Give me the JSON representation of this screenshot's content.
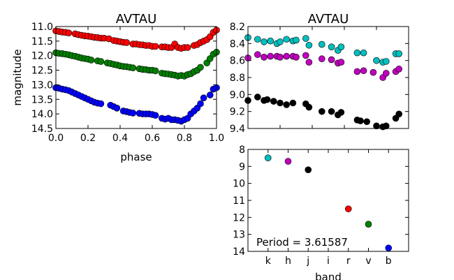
{
  "chart_data": [
    {
      "id": "lightcurve",
      "type": "scatter",
      "title": "AVTAU",
      "xlabel": "phase",
      "ylabel": "magnitude",
      "xlim": [
        0.0,
        1.0
      ],
      "ylim": [
        14.5,
        11.0
      ],
      "y_inverted": true,
      "xticks": [
        "0.0",
        "0.2",
        "0.4",
        "0.6",
        "0.8",
        "1.0"
      ],
      "yticks": [
        "11.0",
        "11.5",
        "12.0",
        "12.5",
        "13.0",
        "13.5",
        "14.0",
        "14.5"
      ],
      "series": [
        {
          "color": "#ff0000",
          "x": [
            0.0,
            0.02,
            0.04,
            0.06,
            0.08,
            0.12,
            0.14,
            0.16,
            0.18,
            0.2,
            0.22,
            0.24,
            0.26,
            0.28,
            0.3,
            0.33,
            0.36,
            0.38,
            0.4,
            0.42,
            0.44,
            0.48,
            0.5,
            0.52,
            0.54,
            0.56,
            0.58,
            0.6,
            0.62,
            0.66,
            0.68,
            0.7,
            0.72,
            0.74,
            0.76,
            0.78,
            0.8,
            0.82,
            0.86,
            0.88,
            0.9,
            0.92,
            0.94,
            0.96,
            0.98,
            1.0
          ],
          "y": [
            11.15,
            11.17,
            11.19,
            11.2,
            11.22,
            11.25,
            11.28,
            11.3,
            11.32,
            11.33,
            11.35,
            11.37,
            11.38,
            11.4,
            11.4,
            11.42,
            11.48,
            11.5,
            11.52,
            11.54,
            11.55,
            11.6,
            11.6,
            11.62,
            11.63,
            11.65,
            11.65,
            11.68,
            11.68,
            11.7,
            11.7,
            11.72,
            11.72,
            11.6,
            11.72,
            11.75,
            11.72,
            11.72,
            11.65,
            11.62,
            11.55,
            11.5,
            11.45,
            11.35,
            11.2,
            11.12
          ]
        },
        {
          "color": "#008000",
          "x": [
            0.0,
            0.02,
            0.04,
            0.06,
            0.08,
            0.1,
            0.12,
            0.14,
            0.16,
            0.18,
            0.2,
            0.22,
            0.26,
            0.28,
            0.32,
            0.34,
            0.36,
            0.38,
            0.4,
            0.42,
            0.44,
            0.46,
            0.48,
            0.52,
            0.54,
            0.56,
            0.58,
            0.6,
            0.62,
            0.66,
            0.68,
            0.7,
            0.72,
            0.74,
            0.76,
            0.78,
            0.8,
            0.82,
            0.84,
            0.86,
            0.88,
            0.9,
            0.94,
            0.96,
            0.98,
            1.0
          ],
          "y": [
            11.9,
            11.92,
            11.93,
            11.95,
            11.97,
            12.0,
            12.02,
            12.05,
            12.08,
            12.1,
            12.12,
            12.15,
            12.18,
            12.2,
            12.25,
            12.27,
            12.3,
            12.32,
            12.35,
            12.37,
            12.38,
            12.4,
            12.42,
            12.45,
            12.47,
            12.48,
            12.5,
            12.5,
            12.52,
            12.6,
            12.62,
            12.63,
            12.65,
            12.67,
            12.7,
            12.68,
            12.7,
            12.65,
            12.62,
            12.55,
            12.5,
            12.4,
            12.25,
            12.1,
            11.95,
            11.88
          ]
        },
        {
          "color": "#0000ff",
          "x": [
            0.0,
            0.02,
            0.04,
            0.06,
            0.08,
            0.1,
            0.12,
            0.14,
            0.16,
            0.18,
            0.2,
            0.22,
            0.24,
            0.26,
            0.28,
            0.34,
            0.36,
            0.38,
            0.42,
            0.44,
            0.46,
            0.48,
            0.52,
            0.54,
            0.56,
            0.58,
            0.6,
            0.62,
            0.66,
            0.68,
            0.7,
            0.72,
            0.74,
            0.76,
            0.78,
            0.8,
            0.82,
            0.84,
            0.86,
            0.88,
            0.9,
            0.92,
            0.96,
            0.98,
            1.0
          ],
          "y": [
            13.1,
            13.12,
            13.15,
            13.17,
            13.2,
            13.25,
            13.3,
            13.35,
            13.4,
            13.45,
            13.5,
            13.55,
            13.6,
            13.63,
            13.65,
            13.7,
            13.75,
            13.8,
            13.9,
            13.92,
            13.95,
            13.97,
            13.98,
            14.0,
            14.0,
            14.0,
            14.02,
            14.05,
            14.15,
            14.18,
            14.15,
            14.2,
            14.2,
            14.22,
            14.25,
            14.2,
            14.15,
            14.0,
            13.9,
            13.8,
            13.65,
            13.45,
            13.35,
            13.15,
            13.1
          ]
        }
      ]
    },
    {
      "id": "kband",
      "type": "scatter",
      "title": "AVTAU",
      "xlim": [
        0.0,
        1.0
      ],
      "ylim": [
        9.4,
        8.2
      ],
      "y_inverted": true,
      "yticks": [
        "8.2",
        "8.4",
        "8.6",
        "8.8",
        "9.0",
        "9.2",
        "9.4"
      ],
      "series": [
        {
          "color": "#00bfbf",
          "x": [
            0.0,
            0.06,
            0.1,
            0.14,
            0.18,
            0.2,
            0.24,
            0.28,
            0.3,
            0.36,
            0.38,
            0.46,
            0.52,
            0.56,
            0.58,
            0.68,
            0.72,
            0.8,
            0.84,
            0.86,
            0.92,
            0.94
          ],
          "y": [
            8.33,
            8.35,
            8.38,
            8.37,
            8.4,
            8.38,
            8.35,
            8.37,
            8.36,
            8.34,
            8.42,
            8.41,
            8.44,
            8.48,
            8.44,
            8.51,
            8.51,
            8.6,
            8.62,
            8.61,
            8.52,
            8.52
          ]
        },
        {
          "color": "#bf00bf",
          "x": [
            0.0,
            0.06,
            0.1,
            0.14,
            0.18,
            0.2,
            0.24,
            0.28,
            0.3,
            0.36,
            0.38,
            0.46,
            0.52,
            0.56,
            0.58,
            0.68,
            0.72,
            0.78,
            0.84,
            0.86,
            0.92,
            0.94
          ],
          "y": [
            8.57,
            8.53,
            8.56,
            8.55,
            8.55,
            8.56,
            8.55,
            8.55,
            8.56,
            8.54,
            8.62,
            8.58,
            8.59,
            8.63,
            8.62,
            8.73,
            8.72,
            8.74,
            8.8,
            8.75,
            8.73,
            8.7
          ]
        },
        {
          "color": "#000000",
          "x": [
            0.0,
            0.06,
            0.1,
            0.12,
            0.16,
            0.2,
            0.24,
            0.28,
            0.36,
            0.38,
            0.46,
            0.52,
            0.56,
            0.58,
            0.68,
            0.7,
            0.74,
            0.8,
            0.84,
            0.86,
            0.92,
            0.94
          ],
          "y": [
            9.07,
            9.03,
            9.07,
            9.06,
            9.08,
            9.1,
            9.12,
            9.1,
            9.11,
            9.15,
            9.2,
            9.2,
            9.24,
            9.21,
            9.3,
            9.31,
            9.32,
            9.37,
            9.38,
            9.37,
            9.28,
            9.23
          ]
        }
      ]
    },
    {
      "id": "bands",
      "type": "scatter",
      "xlabel": "band",
      "categories": [
        "k",
        "h",
        "j",
        "i",
        "r",
        "v",
        "b"
      ],
      "ylim": [
        14,
        8
      ],
      "y_inverted": true,
      "yticks": [
        "8",
        "9",
        "10",
        "11",
        "12",
        "13",
        "14"
      ],
      "annotation": "Period = 3.61587",
      "points": [
        {
          "band": "k",
          "value": 8.5,
          "color": "#00bfbf"
        },
        {
          "band": "h",
          "value": 8.7,
          "color": "#bf00bf"
        },
        {
          "band": "j",
          "value": 9.2,
          "color": "#000000"
        },
        {
          "band": "r",
          "value": 11.5,
          "color": "#ff0000"
        },
        {
          "band": "v",
          "value": 12.4,
          "color": "#008000"
        },
        {
          "band": "b",
          "value": 13.8,
          "color": "#0000ff"
        }
      ]
    }
  ]
}
